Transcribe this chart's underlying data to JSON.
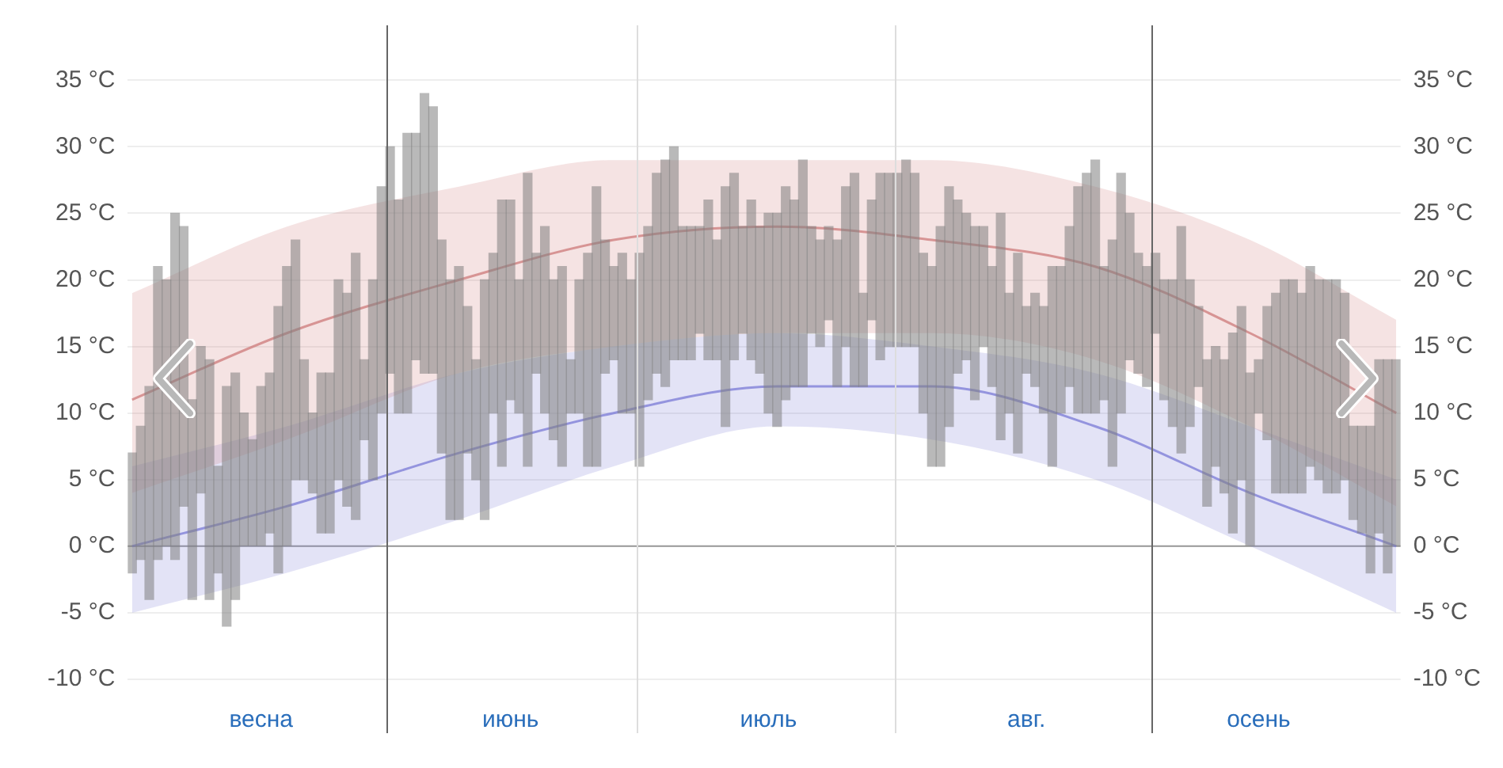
{
  "chart_data": {
    "type": "bar",
    "categories": [
      null,
      null,
      null,
      null,
      null,
      null,
      null,
      null,
      null,
      null,
      null,
      null,
      null,
      null,
      null,
      "весна",
      null,
      null,
      null,
      null,
      null,
      null,
      null,
      null,
      null,
      null,
      null,
      null,
      null,
      null,
      null,
      null,
      null,
      null,
      null,
      null,
      null,
      null,
      null,
      null,
      null,
      null,
      null,
      null,
      "июнь",
      null,
      null,
      null,
      null,
      null,
      null,
      null,
      null,
      null,
      null,
      null,
      null,
      null,
      null,
      null,
      null,
      null,
      null,
      null,
      null,
      null,
      null,
      null,
      null,
      null,
      null,
      null,
      null,
      null,
      "июль",
      null,
      null,
      null,
      null,
      null,
      null,
      null,
      null,
      null,
      null,
      null,
      null,
      null,
      null,
      null,
      null,
      null,
      null,
      null,
      null,
      null,
      null,
      null,
      null,
      null,
      null,
      null,
      null,
      null,
      "авг.",
      null,
      null,
      null,
      null,
      null,
      null,
      null,
      null,
      null,
      null,
      null,
      null,
      null,
      null,
      null,
      null,
      null,
      null,
      null,
      null,
      null,
      null,
      null,
      null,
      null,
      null,
      "осень",
      null,
      null,
      null,
      null,
      null,
      null,
      null,
      null,
      null,
      null,
      null,
      null,
      null,
      null,
      null,
      null
    ],
    "ylim": [
      -10,
      39
    ],
    "yticks": [
      {
        "value": -10,
        "label": "-10 °C"
      },
      {
        "value": -5,
        "label": "-5 °C"
      },
      {
        "value": 0,
        "label": "0 °C"
      },
      {
        "value": 5,
        "label": "5 °C"
      },
      {
        "value": 10,
        "label": "10 °C"
      },
      {
        "value": 15,
        "label": "15 °C"
      },
      {
        "value": 20,
        "label": "20 °C"
      },
      {
        "value": 25,
        "label": "25 °C"
      },
      {
        "value": 30,
        "label": "30 °C"
      },
      {
        "value": 35,
        "label": "35 °C"
      }
    ],
    "y2lim": [
      -10,
      39
    ],
    "y2ticks": [
      {
        "value": -10,
        "label": "-10 °C"
      },
      {
        "value": -5,
        "label": "-5 °C"
      },
      {
        "value": 0,
        "label": "0 °C"
      },
      {
        "value": 5,
        "label": "5 °C"
      },
      {
        "value": 10,
        "label": "10 °C"
      },
      {
        "value": 15,
        "label": "15 °C"
      },
      {
        "value": 20,
        "label": "20 °C"
      },
      {
        "value": 25,
        "label": "25 °C"
      },
      {
        "value": 30,
        "label": "30 °C"
      },
      {
        "value": 35,
        "label": "35 °C"
      }
    ],
    "grid": "y",
    "legend": false,
    "marker": "none",
    "ref_lines": [
      {
        "axis": "y",
        "value": 0,
        "color": "#999999"
      }
    ],
    "series": [
      {
        "type": "line",
        "color": "#d08080",
        "values": [
          11,
          null,
          null,
          null,
          null,
          null,
          null,
          null,
          null,
          null,
          null,
          null,
          null,
          null,
          null,
          null,
          null,
          null,
          16,
          null,
          null,
          null,
          null,
          null,
          null,
          null,
          null,
          null,
          null,
          null,
          null,
          null,
          null,
          null,
          null,
          null,
          null,
          null,
          20,
          null,
          null,
          null,
          null,
          null,
          null,
          null,
          null,
          null,
          null,
          null,
          null,
          null,
          null,
          null,
          null,
          null,
          23,
          null,
          null,
          null,
          null,
          null,
          null,
          null,
          null,
          null,
          null,
          null,
          null,
          null,
          null,
          null,
          null,
          null,
          null,
          24,
          null,
          null,
          null,
          null,
          null,
          null,
          null,
          null,
          null,
          null,
          null,
          null,
          null,
          null,
          null,
          null,
          null,
          23,
          null,
          null,
          null,
          null,
          null,
          null,
          null,
          null,
          null,
          null,
          null,
          null,
          null,
          null,
          null,
          null,
          null,
          null,
          21,
          null,
          null,
          null,
          null,
          null,
          null,
          null,
          null,
          null,
          null,
          null,
          null,
          null,
          null,
          null,
          null,
          null,
          16,
          null,
          null,
          null,
          null,
          null,
          null,
          null,
          null,
          null,
          null,
          null,
          null,
          null,
          null,
          null,
          null,
          10
        ],
        "lower": [
          4,
          null,
          null,
          null,
          null,
          null,
          null,
          null,
          null,
          null,
          null,
          null,
          null,
          null,
          null,
          null,
          null,
          null,
          8,
          null,
          null,
          null,
          null,
          null,
          null,
          null,
          null,
          null,
          null,
          null,
          null,
          null,
          null,
          null,
          null,
          null,
          null,
          null,
          13,
          null,
          null,
          null,
          null,
          null,
          null,
          null,
          null,
          null,
          null,
          null,
          null,
          null,
          null,
          null,
          null,
          null,
          15,
          null,
          null,
          null,
          null,
          null,
          null,
          null,
          null,
          null,
          null,
          null,
          null,
          null,
          null,
          null,
          null,
          null,
          null,
          16,
          null,
          null,
          null,
          null,
          null,
          null,
          null,
          null,
          null,
          null,
          null,
          null,
          null,
          null,
          null,
          null,
          null,
          16,
          null,
          null,
          null,
          null,
          null,
          null,
          null,
          null,
          null,
          null,
          null,
          null,
          null,
          null,
          null,
          null,
          null,
          null,
          14,
          null,
          null,
          null,
          null,
          null,
          null,
          null,
          null,
          null,
          null,
          null,
          null,
          null,
          null,
          null,
          null,
          null,
          9,
          null,
          null,
          null,
          null,
          null,
          null,
          null,
          null,
          null,
          null,
          null,
          null,
          null,
          null,
          null,
          null,
          3
        ],
        "upper": [
          19,
          null,
          null,
          null,
          null,
          null,
          null,
          null,
          null,
          null,
          null,
          null,
          null,
          null,
          null,
          null,
          null,
          null,
          24,
          null,
          null,
          null,
          null,
          null,
          null,
          null,
          null,
          null,
          null,
          null,
          null,
          null,
          null,
          null,
          null,
          null,
          null,
          null,
          27,
          null,
          null,
          null,
          null,
          null,
          null,
          null,
          null,
          null,
          null,
          null,
          null,
          null,
          null,
          null,
          null,
          null,
          29,
          null,
          null,
          null,
          null,
          null,
          null,
          null,
          null,
          null,
          null,
          null,
          null,
          null,
          null,
          null,
          null,
          null,
          null,
          29,
          null,
          null,
          null,
          null,
          null,
          null,
          null,
          null,
          null,
          null,
          null,
          null,
          null,
          null,
          null,
          null,
          null,
          29,
          null,
          null,
          null,
          null,
          null,
          null,
          null,
          null,
          null,
          null,
          null,
          null,
          null,
          null,
          null,
          null,
          null,
          null,
          27,
          null,
          null,
          null,
          null,
          null,
          null,
          null,
          null,
          null,
          null,
          null,
          null,
          null,
          null,
          null,
          null,
          null,
          23,
          null,
          null,
          null,
          null,
          null,
          null,
          null,
          null,
          null,
          null,
          null,
          null,
          null,
          null,
          null,
          null,
          17
        ]
      },
      {
        "type": "line",
        "color": "#8080d8",
        "values": [
          0,
          null,
          null,
          null,
          null,
          null,
          null,
          null,
          null,
          null,
          null,
          null,
          null,
          null,
          null,
          null,
          null,
          null,
          3,
          null,
          null,
          null,
          null,
          null,
          null,
          null,
          null,
          null,
          null,
          null,
          null,
          null,
          null,
          null,
          null,
          null,
          null,
          null,
          7,
          null,
          null,
          null,
          null,
          null,
          null,
          null,
          null,
          null,
          null,
          null,
          null,
          null,
          null,
          null,
          null,
          null,
          10,
          null,
          null,
          null,
          null,
          null,
          null,
          null,
          null,
          null,
          null,
          null,
          null,
          null,
          null,
          null,
          null,
          null,
          null,
          12,
          null,
          null,
          null,
          null,
          null,
          null,
          null,
          null,
          null,
          null,
          null,
          null,
          null,
          null,
          null,
          null,
          null,
          12,
          null,
          null,
          null,
          null,
          null,
          null,
          null,
          null,
          null,
          null,
          null,
          null,
          null,
          null,
          null,
          null,
          null,
          null,
          9,
          null,
          null,
          null,
          null,
          null,
          null,
          null,
          null,
          null,
          null,
          null,
          null,
          null,
          null,
          null,
          null,
          null,
          4,
          null,
          null,
          null,
          null,
          null,
          null,
          null,
          null,
          null,
          null,
          null,
          null,
          null,
          null,
          null,
          null,
          0
        ],
        "lower": [
          -5,
          null,
          null,
          null,
          null,
          null,
          null,
          null,
          null,
          null,
          null,
          null,
          null,
          null,
          null,
          null,
          null,
          null,
          -2,
          null,
          null,
          null,
          null,
          null,
          null,
          null,
          null,
          null,
          null,
          null,
          null,
          null,
          null,
          null,
          null,
          null,
          null,
          null,
          2,
          null,
          null,
          null,
          null,
          null,
          null,
          null,
          null,
          null,
          null,
          null,
          null,
          null,
          null,
          null,
          null,
          null,
          6,
          null,
          null,
          null,
          null,
          null,
          null,
          null,
          null,
          null,
          null,
          null,
          null,
          null,
          null,
          null,
          null,
          null,
          null,
          9,
          null,
          null,
          null,
          null,
          null,
          null,
          null,
          null,
          null,
          null,
          null,
          null,
          null,
          null,
          null,
          null,
          null,
          8,
          null,
          null,
          null,
          null,
          null,
          null,
          null,
          null,
          null,
          null,
          null,
          null,
          null,
          null,
          null,
          null,
          null,
          null,
          5,
          null,
          null,
          null,
          null,
          null,
          null,
          null,
          null,
          null,
          null,
          null,
          null,
          null,
          null,
          null,
          null,
          null,
          0,
          null,
          null,
          null,
          null,
          null,
          null,
          null,
          null,
          null,
          null,
          null,
          null,
          null,
          null,
          null,
          null,
          -5
        ],
        "upper": [
          6,
          null,
          null,
          null,
          null,
          null,
          null,
          null,
          null,
          null,
          null,
          null,
          null,
          null,
          null,
          null,
          null,
          null,
          9,
          null,
          null,
          null,
          null,
          null,
          null,
          null,
          null,
          null,
          null,
          null,
          null,
          null,
          null,
          null,
          null,
          null,
          null,
          null,
          13,
          null,
          null,
          null,
          null,
          null,
          null,
          null,
          null,
          null,
          null,
          null,
          null,
          null,
          null,
          null,
          null,
          null,
          15,
          null,
          null,
          null,
          null,
          null,
          null,
          null,
          null,
          null,
          null,
          null,
          null,
          null,
          null,
          null,
          null,
          null,
          null,
          16,
          null,
          null,
          null,
          null,
          null,
          null,
          null,
          null,
          null,
          null,
          null,
          null,
          null,
          null,
          null,
          null,
          null,
          15,
          null,
          null,
          null,
          null,
          null,
          null,
          null,
          null,
          null,
          null,
          null,
          null,
          null,
          null,
          null,
          null,
          null,
          null,
          13,
          null,
          null,
          null,
          null,
          null,
          null,
          null,
          null,
          null,
          null,
          null,
          null,
          null,
          null,
          null,
          null,
          null,
          9,
          null,
          null,
          null,
          null,
          null,
          null,
          null,
          null,
          null,
          null,
          null,
          null,
          null,
          null,
          null,
          null,
          5
        ]
      },
      {
        "color": "#808080",
        "base": [
          -2,
          -1,
          -4,
          -1,
          0,
          -1,
          3,
          -4,
          4,
          -4,
          -2,
          -6,
          -4,
          0,
          0,
          0,
          1,
          -2,
          0,
          5,
          5,
          4,
          1,
          1,
          5,
          3,
          2,
          8,
          5,
          10,
          13,
          10,
          10,
          14,
          13,
          13,
          7,
          2,
          2,
          7,
          5,
          2,
          10,
          6,
          11,
          10,
          6,
          13,
          10,
          8,
          6,
          10,
          10,
          6,
          6,
          13,
          14,
          10,
          10,
          6,
          11,
          13,
          12,
          14,
          14,
          14,
          16,
          14,
          14,
          9,
          14,
          16,
          14,
          13,
          10,
          9,
          11,
          12,
          12,
          16,
          15,
          17,
          12,
          15,
          12,
          12,
          17,
          14,
          15,
          15,
          15,
          15,
          10,
          6,
          6,
          9,
          13,
          14,
          11,
          15,
          12,
          8,
          10,
          7,
          13,
          12,
          10,
          6,
          10,
          12,
          10,
          10,
          10,
          11,
          6,
          10,
          14,
          13,
          12,
          16,
          11,
          9,
          7,
          9,
          12,
          3,
          6,
          4,
          1,
          5,
          0,
          10,
          8,
          4,
          4,
          4,
          4,
          6,
          5,
          4,
          4,
          5,
          2,
          1,
          -2,
          1,
          -2,
          0
        ],
        "values": [
          9,
          10,
          16,
          22,
          20,
          26,
          21,
          15,
          11,
          18,
          8,
          18,
          17,
          10,
          8,
          12,
          12,
          20,
          21,
          18,
          9,
          6,
          12,
          12,
          15,
          16,
          20,
          6,
          15,
          17,
          17,
          16,
          21,
          17,
          21,
          20,
          16,
          18,
          19,
          11,
          9,
          18,
          12,
          20,
          15,
          10,
          22,
          9,
          14,
          12,
          15,
          4,
          10,
          16,
          21,
          10,
          7,
          12,
          10,
          16,
          13,
          15,
          17,
          16,
          10,
          10,
          8,
          12,
          9,
          18,
          14,
          8,
          12,
          11,
          15,
          16,
          16,
          14,
          17,
          8,
          8,
          7,
          11,
          12,
          16,
          7,
          9,
          14,
          13,
          13,
          14,
          13,
          12,
          15,
          18,
          18,
          13,
          11,
          13,
          9,
          9,
          17,
          9,
          15,
          5,
          7,
          8,
          15,
          11,
          12,
          17,
          18,
          19,
          10,
          17,
          18,
          11,
          9,
          9,
          6,
          9,
          11,
          17,
          11,
          6,
          11,
          9,
          10,
          15,
          13,
          13,
          4,
          10,
          15,
          16,
          16,
          15,
          15,
          15,
          16,
          16,
          14,
          7,
          8,
          11,
          13,
          16,
          14
        ]
      }
    ]
  }
}
